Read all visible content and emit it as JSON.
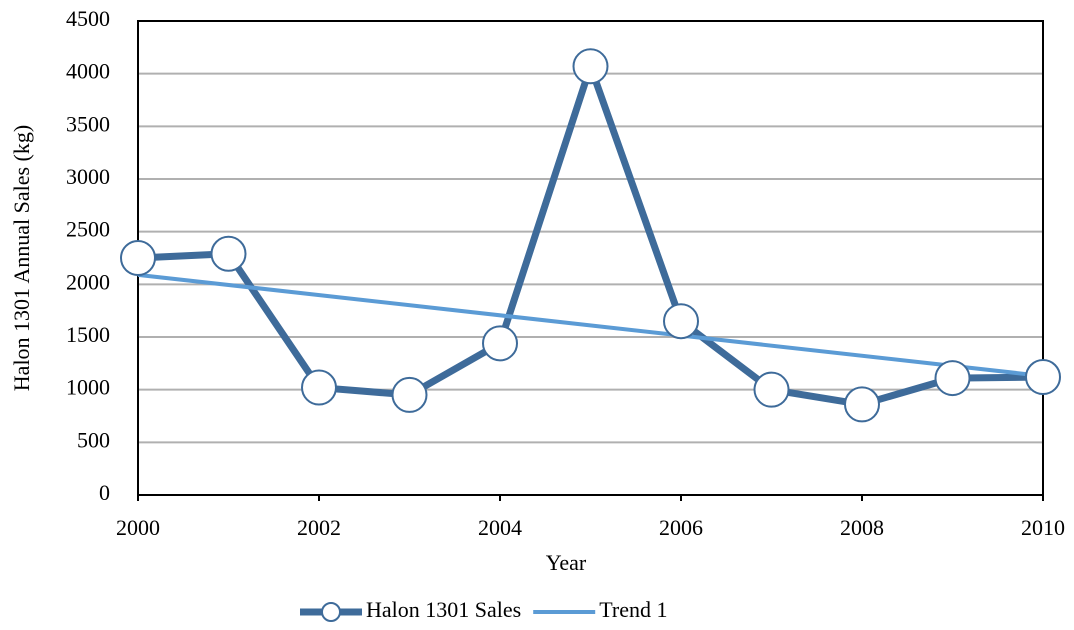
{
  "chart_data": {
    "type": "line",
    "x": [
      2000,
      2001,
      2002,
      2003,
      2004,
      2005,
      2006,
      2007,
      2008,
      2009,
      2010
    ],
    "series": [
      {
        "name": "Halon 1301 Sales",
        "color": "#3e6b9a",
        "marker": "circle",
        "values": [
          2250,
          2290,
          1020,
          950,
          1440,
          4070,
          1650,
          1000,
          860,
          1110,
          1120
        ]
      },
      {
        "name": "Trend 1",
        "color": "#5b9bd5",
        "x": [
          2000,
          2010
        ],
        "values": [
          2090,
          1130
        ]
      }
    ],
    "xlabel": "Year",
    "ylabel": "Halon 1301 Annual Sales (kg)",
    "xlim": [
      2000,
      2010
    ],
    "xticks": [
      2000,
      2002,
      2004,
      2006,
      2008,
      2010
    ],
    "ylim": [
      0,
      4500
    ],
    "yticks": [
      0,
      500,
      1000,
      1500,
      2000,
      2500,
      3000,
      3500,
      4000,
      4500
    ],
    "grid": true,
    "legend": "bottom"
  }
}
